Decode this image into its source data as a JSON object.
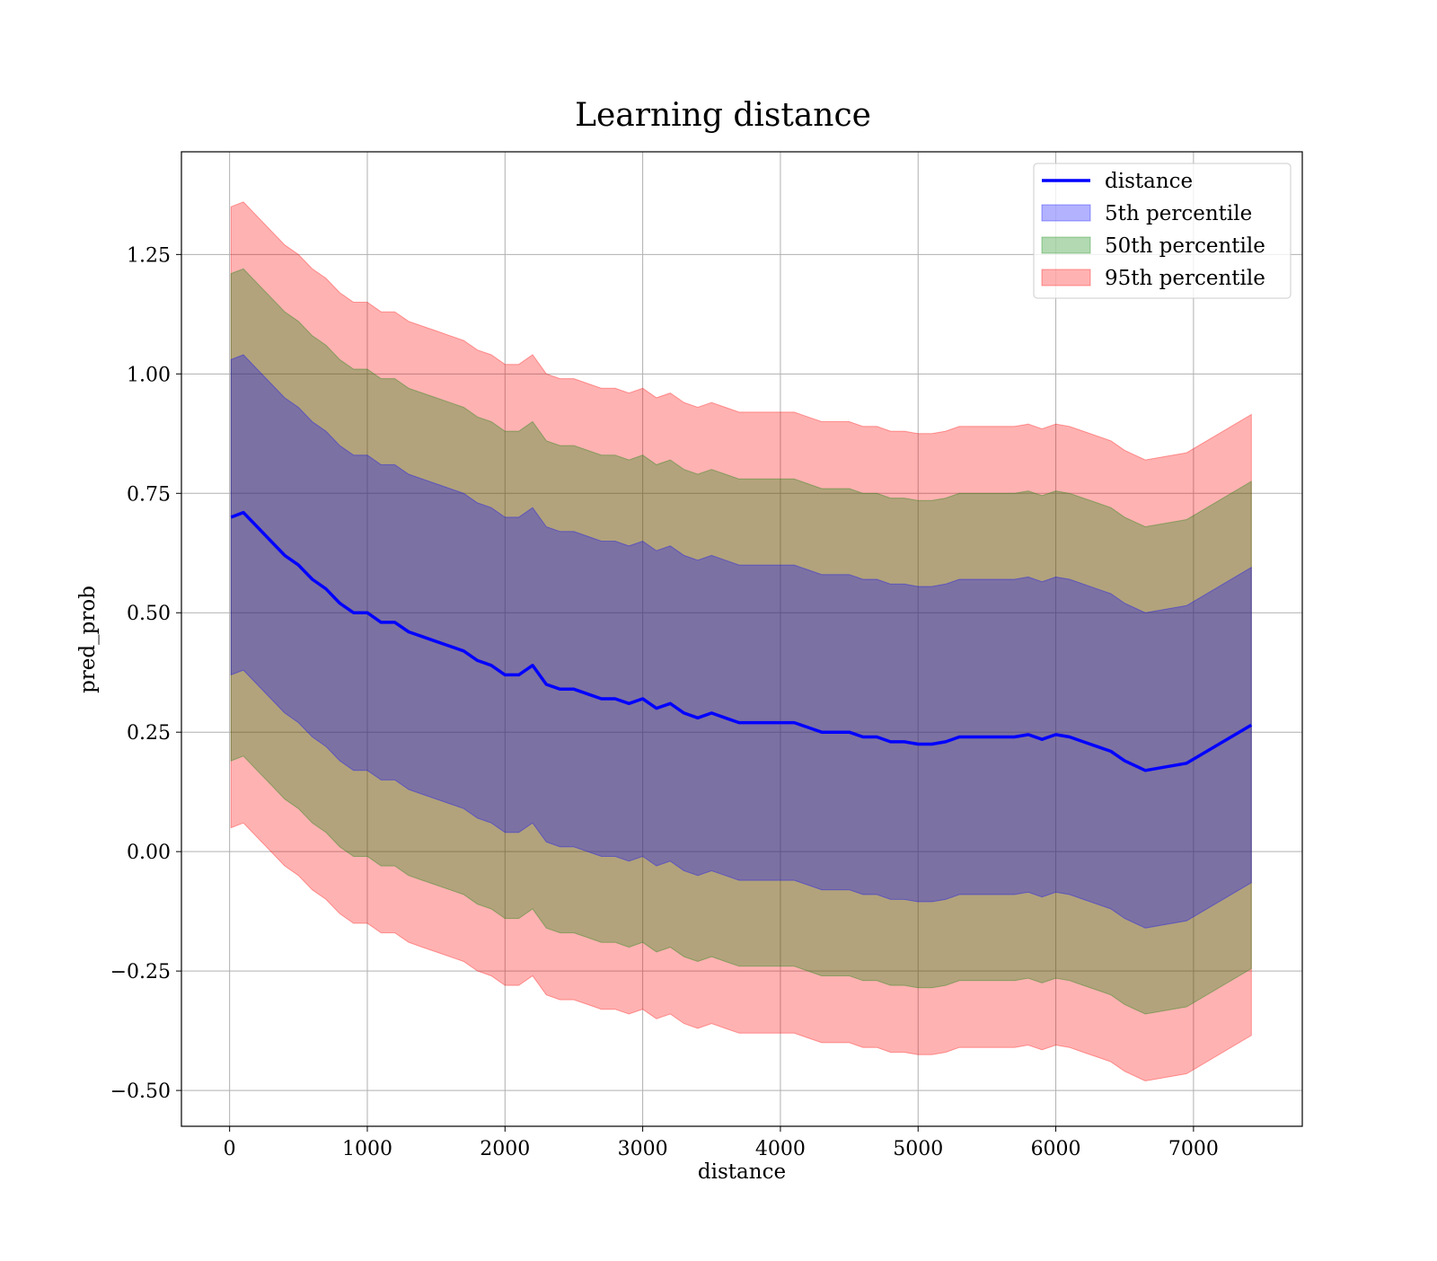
{
  "chart_data": {
    "type": "line",
    "title": "Learning distance",
    "xlabel": "distance",
    "ylabel": "pred_prob",
    "xlim": [
      -350,
      7790
    ],
    "ylim": [
      -0.575,
      1.465
    ],
    "xticks": [
      0,
      1000,
      2000,
      3000,
      4000,
      5000,
      6000,
      7000
    ],
    "yticks": [
      -0.5,
      -0.25,
      0.0,
      0.25,
      0.5,
      0.75,
      1.0,
      1.25
    ],
    "xtick_labels": [
      "0",
      "1000",
      "2000",
      "3000",
      "4000",
      "5000",
      "6000",
      "7000"
    ],
    "ytick_labels": [
      "−0.50",
      "−0.25",
      "0.00",
      "0.25",
      "0.50",
      "0.75",
      "1.00",
      "1.25"
    ],
    "grid": true,
    "legend_position": "top-right",
    "x": [
      10,
      100,
      200,
      300,
      400,
      500,
      600,
      700,
      800,
      900,
      1000,
      1100,
      1200,
      1300,
      1400,
      1500,
      1600,
      1700,
      1800,
      1900,
      2000,
      2100,
      2200,
      2300,
      2400,
      2500,
      2600,
      2700,
      2800,
      2900,
      3000,
      3100,
      3200,
      3300,
      3400,
      3500,
      3600,
      3700,
      3800,
      3900,
      4000,
      4100,
      4200,
      4300,
      4400,
      4500,
      4600,
      4700,
      4800,
      4900,
      5000,
      5100,
      5200,
      5300,
      5400,
      5500,
      5600,
      5700,
      5800,
      5900,
      6000,
      6100,
      6200,
      6300,
      6400,
      6500,
      6650,
      6950,
      7420
    ],
    "series": [
      {
        "name": "distance",
        "kind": "line",
        "color": "#0000ff",
        "values": [
          0.7,
          0.71,
          0.68,
          0.65,
          0.62,
          0.6,
          0.57,
          0.55,
          0.52,
          0.5,
          0.5,
          0.48,
          0.48,
          0.46,
          0.45,
          0.44,
          0.43,
          0.42,
          0.4,
          0.39,
          0.37,
          0.37,
          0.39,
          0.35,
          0.34,
          0.34,
          0.33,
          0.32,
          0.32,
          0.31,
          0.32,
          0.3,
          0.31,
          0.29,
          0.28,
          0.29,
          0.28,
          0.27,
          0.27,
          0.27,
          0.27,
          0.27,
          0.26,
          0.25,
          0.25,
          0.25,
          0.24,
          0.24,
          0.23,
          0.23,
          0.225,
          0.225,
          0.23,
          0.24,
          0.24,
          0.24,
          0.24,
          0.24,
          0.245,
          0.235,
          0.245,
          0.24,
          0.23,
          0.22,
          0.21,
          0.19,
          0.17,
          0.185,
          0.265
        ]
      },
      {
        "name": "5th percentile",
        "kind": "band",
        "color": "#0000ff",
        "half_width": [
          0.33,
          0.33,
          0.33,
          0.33,
          0.33,
          0.33,
          0.33,
          0.33,
          0.33,
          0.33,
          0.33,
          0.33,
          0.33,
          0.33,
          0.33,
          0.33,
          0.33,
          0.33,
          0.33,
          0.33,
          0.33,
          0.33,
          0.33,
          0.33,
          0.33,
          0.33,
          0.33,
          0.33,
          0.33,
          0.33,
          0.33,
          0.33,
          0.33,
          0.33,
          0.33,
          0.33,
          0.33,
          0.33,
          0.33,
          0.33,
          0.33,
          0.33,
          0.33,
          0.33,
          0.33,
          0.33,
          0.33,
          0.33,
          0.33,
          0.33,
          0.33,
          0.33,
          0.33,
          0.33,
          0.33,
          0.33,
          0.33,
          0.33,
          0.33,
          0.33,
          0.33,
          0.33,
          0.33,
          0.33,
          0.33,
          0.33,
          0.33,
          0.33,
          0.33
        ]
      },
      {
        "name": "50th percentile",
        "kind": "band",
        "color": "#008000",
        "half_width": [
          0.51,
          0.51,
          0.51,
          0.51,
          0.51,
          0.51,
          0.51,
          0.51,
          0.51,
          0.51,
          0.51,
          0.51,
          0.51,
          0.51,
          0.51,
          0.51,
          0.51,
          0.51,
          0.51,
          0.51,
          0.51,
          0.51,
          0.51,
          0.51,
          0.51,
          0.51,
          0.51,
          0.51,
          0.51,
          0.51,
          0.51,
          0.51,
          0.51,
          0.51,
          0.51,
          0.51,
          0.51,
          0.51,
          0.51,
          0.51,
          0.51,
          0.51,
          0.51,
          0.51,
          0.51,
          0.51,
          0.51,
          0.51,
          0.51,
          0.51,
          0.51,
          0.51,
          0.51,
          0.51,
          0.51,
          0.51,
          0.51,
          0.51,
          0.51,
          0.51,
          0.51,
          0.51,
          0.51,
          0.51,
          0.51,
          0.51,
          0.51,
          0.51,
          0.51
        ]
      },
      {
        "name": "95th percentile",
        "kind": "band",
        "color": "#ff0000",
        "half_width": [
          0.65,
          0.65,
          0.65,
          0.65,
          0.65,
          0.65,
          0.65,
          0.65,
          0.65,
          0.65,
          0.65,
          0.65,
          0.65,
          0.65,
          0.65,
          0.65,
          0.65,
          0.65,
          0.65,
          0.65,
          0.65,
          0.65,
          0.65,
          0.65,
          0.65,
          0.65,
          0.65,
          0.65,
          0.65,
          0.65,
          0.65,
          0.65,
          0.65,
          0.65,
          0.65,
          0.65,
          0.65,
          0.65,
          0.65,
          0.65,
          0.65,
          0.65,
          0.65,
          0.65,
          0.65,
          0.65,
          0.65,
          0.65,
          0.65,
          0.65,
          0.65,
          0.65,
          0.65,
          0.65,
          0.65,
          0.65,
          0.65,
          0.65,
          0.65,
          0.65,
          0.65,
          0.65,
          0.65,
          0.65,
          0.65,
          0.65,
          0.65,
          0.65,
          0.65
        ]
      }
    ]
  }
}
